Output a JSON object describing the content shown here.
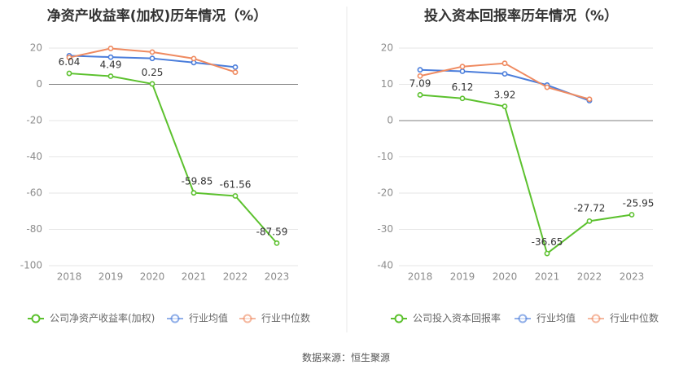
{
  "source_text": "数据来源：恒生聚源",
  "colors": {
    "company": "#5cc12e",
    "industry_avg": "#4a7ddb",
    "industry_median": "#ef8a60",
    "grid": "#e6e6e6",
    "axis": "#7f7f7f",
    "divider": "#e8e8e8"
  },
  "chart_data": [
    {
      "type": "line",
      "title": "净资产收益率(加权)历年情况（%）",
      "categories": [
        "2018",
        "2019",
        "2020",
        "2021",
        "2022",
        "2023"
      ],
      "ylim": [
        -100,
        20
      ],
      "yticks": [
        20,
        0,
        -20,
        -40,
        -60,
        -80,
        -100
      ],
      "grid": true,
      "legend_position": "bottom",
      "series": [
        {
          "name": "公司净资产收益率(加权)",
          "color": "#5cc12e",
          "values": [
            6.04,
            4.49,
            0.25,
            -59.85,
            -61.56,
            -87.59
          ],
          "labels": [
            "6.04",
            "4.49",
            "0.25",
            "-59.85",
            "-61.56",
            "-87.59"
          ]
        },
        {
          "name": "行业均值",
          "color": "#4a7ddb",
          "values": [
            15.8,
            15.0,
            14.3,
            12.0,
            9.5,
            null
          ]
        },
        {
          "name": "行业中位数",
          "color": "#ef8a60",
          "values": [
            14.8,
            19.8,
            17.8,
            14.2,
            6.7,
            null
          ]
        }
      ]
    },
    {
      "type": "line",
      "title": "投入资本回报率历年情况（%）",
      "categories": [
        "2018",
        "2019",
        "2020",
        "2021",
        "2022",
        "2023"
      ],
      "ylim": [
        -40,
        20
      ],
      "yticks": [
        20,
        10,
        0,
        -10,
        -20,
        -30,
        -40
      ],
      "grid": true,
      "legend_position": "bottom",
      "series": [
        {
          "name": "公司投入资本回报率",
          "color": "#5cc12e",
          "values": [
            7.09,
            6.12,
            3.92,
            -36.65,
            -27.72,
            -25.95
          ],
          "labels": [
            "7.09",
            "6.12",
            "3.92",
            "-36.65",
            "-27.72",
            "-25.95"
          ]
        },
        {
          "name": "行业均值",
          "color": "#4a7ddb",
          "values": [
            14.0,
            13.6,
            12.9,
            9.8,
            5.5,
            null
          ]
        },
        {
          "name": "行业中位数",
          "color": "#ef8a60",
          "values": [
            12.3,
            14.9,
            15.8,
            9.2,
            5.9,
            null
          ]
        }
      ]
    }
  ]
}
